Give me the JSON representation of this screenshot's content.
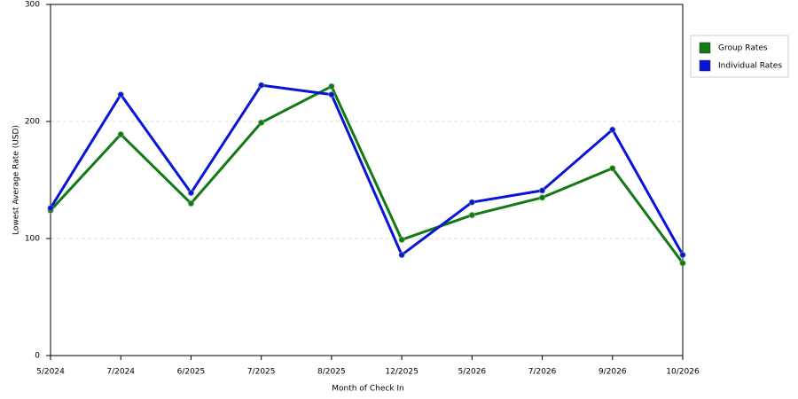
{
  "chart_data": {
    "type": "line",
    "x_label": "Month of Check In",
    "y_label": "Lowest Average Rate (USD)",
    "categories": [
      "5/2024",
      "7/2024",
      "6/2025",
      "7/2025",
      "8/2025",
      "12/2025",
      "5/2026",
      "7/2026",
      "9/2026",
      "10/2026"
    ],
    "series": [
      {
        "name": "Group Rates",
        "color": "#137a13",
        "values": [
          124,
          189,
          130,
          199,
          230,
          99,
          120,
          135,
          160,
          79
        ]
      },
      {
        "name": "Individual Rates",
        "color": "#0a14d6",
        "values": [
          126,
          223,
          139,
          231,
          223,
          86,
          131,
          141,
          193,
          86
        ]
      }
    ],
    "ylim": [
      0,
      300
    ],
    "yticks": [
      0,
      100,
      200,
      300
    ],
    "grid": true,
    "legend": "right"
  }
}
